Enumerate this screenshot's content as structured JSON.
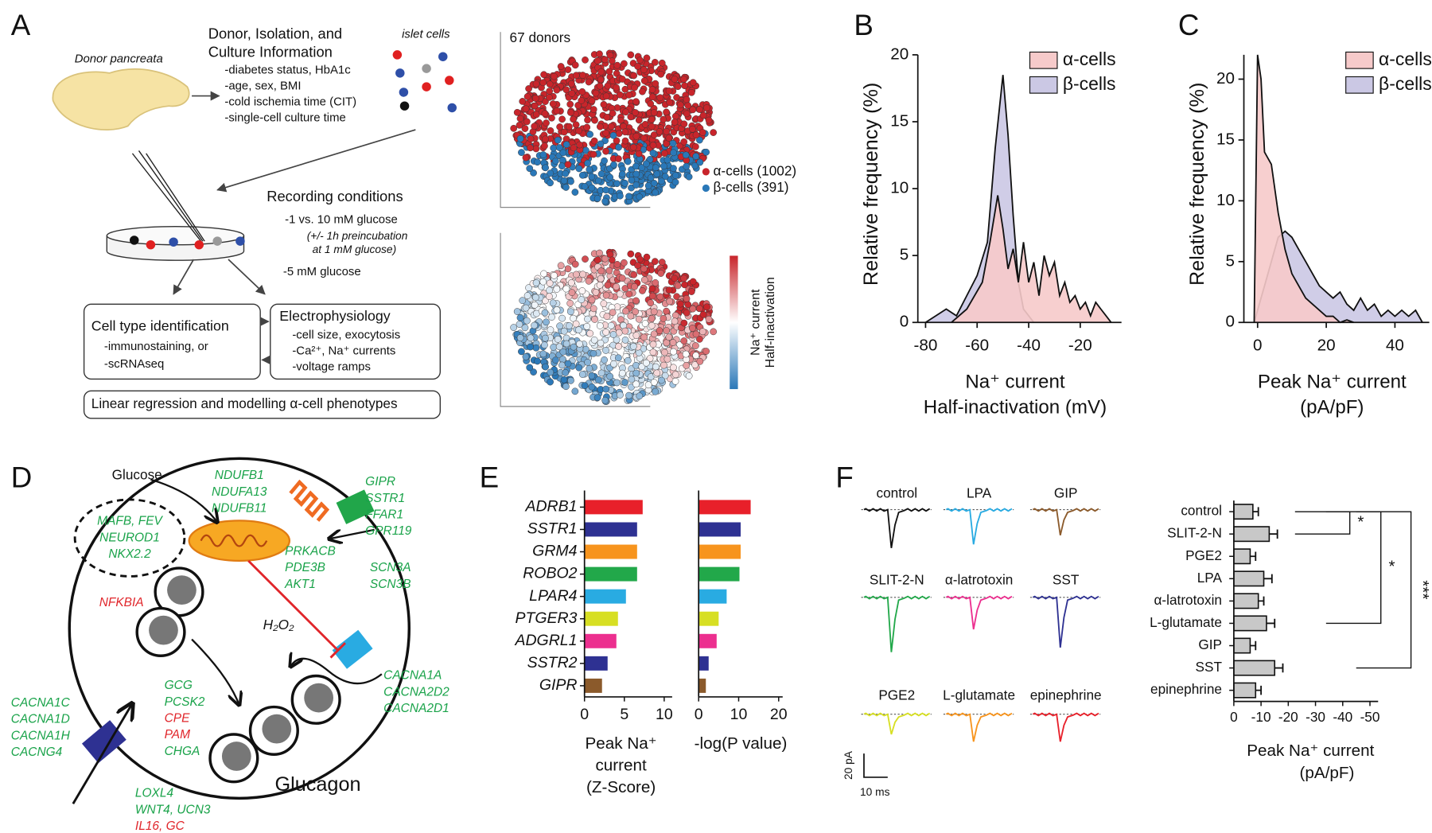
{
  "panel_labels": [
    "A",
    "B",
    "C",
    "D",
    "E",
    "F"
  ],
  "panel_a": {
    "pancreas_label": "Donor pancreata",
    "donor_info_title": [
      "Donor, Isolation, and",
      "Culture Information"
    ],
    "donor_info_items": [
      "-diabetes status, HbA1c",
      "-age, sex, BMI",
      "-cold ischemia time (CIT)",
      "-single-cell culture time"
    ],
    "islet_label": "islet cells",
    "recording_title": "Recording conditions",
    "recording_items": [
      "-1 vs. 10 mM glucose",
      "(+/- 1h preincubation",
      "at 1 mM glucose)",
      "-5 mM glucose"
    ],
    "cell_type_box": {
      "title": "Cell type identification",
      "items": [
        "-immunostaining, or",
        "-scRNAseq"
      ]
    },
    "ephys_box": {
      "title": "Electrophysiology",
      "items": [
        "-cell size, exocytosis",
        "-Ca²⁺, Na⁺ currents",
        "-voltage ramps"
      ]
    },
    "bottom_box": "Linear regression and modelling α-cell phenotypes",
    "umap_top": {
      "title": "67 donors",
      "legend": [
        {
          "name": "α-cells (1002)",
          "color": "#c8252b"
        },
        {
          "name": "β-cells (391)",
          "color": "#2a78b8"
        }
      ]
    },
    "umap_bottom": {
      "colorbar_label": [
        "Na⁺ current",
        "Half-inactivation"
      ]
    }
  },
  "chart_data": [
    {
      "type": "line",
      "ylabel": "Relative frequency (%)",
      "xlabel": [
        "Na⁺ current",
        "Half-inactivation (mV)"
      ],
      "xlim": [
        -83,
        -4
      ],
      "xticks": [
        -80,
        -60,
        -40,
        -20
      ],
      "ylim": [
        0,
        20
      ],
      "yticks": [
        0,
        5,
        10,
        15,
        20
      ],
      "fill_area": true,
      "series": [
        {
          "name": "α-cells",
          "color": "#f6caca",
          "x": [
            -70,
            -64,
            -58,
            -55,
            -52,
            -50,
            -48,
            -46,
            -44,
            -42,
            -40,
            -38,
            -36,
            -34,
            -32,
            -30,
            -28,
            -26,
            -24,
            -22,
            -20,
            -18,
            -16,
            -14,
            -12,
            -10,
            -8
          ],
          "values": [
            0,
            1,
            3,
            6,
            9.5,
            7,
            4,
            5.5,
            3,
            6,
            3,
            4.5,
            2,
            5,
            3.5,
            4.5,
            2,
            3,
            1.5,
            2,
            1,
            1.5,
            0.5,
            1.5,
            1,
            0.5,
            0
          ]
        },
        {
          "name": "β-cells",
          "color": "#cbc8e4",
          "x": [
            -80,
            -76,
            -72,
            -68,
            -64,
            -60,
            -56,
            -53,
            -50,
            -48,
            -46,
            -44,
            -42,
            -40,
            -38
          ],
          "values": [
            0,
            0.5,
            1,
            0.5,
            2,
            3.5,
            6,
            13,
            18.5,
            14,
            8,
            3,
            1,
            0.5,
            0
          ]
        }
      ]
    },
    {
      "type": "line",
      "ylabel": "Relative frequency (%)",
      "xlabel": [
        "Peak Na⁺ current",
        "(pA/pF)"
      ],
      "xlim": [
        -4,
        50
      ],
      "xticks": [
        0,
        20,
        40
      ],
      "ylim": [
        0,
        22
      ],
      "yticks": [
        0,
        5,
        10,
        15,
        20
      ],
      "fill_area": true,
      "series": [
        {
          "name": "α-cells",
          "color": "#f6caca",
          "x": [
            -1,
            0,
            1,
            2,
            4,
            6,
            8,
            10,
            12,
            14,
            16,
            18,
            20,
            22,
            24,
            26,
            28
          ],
          "values": [
            0,
            22,
            20,
            14,
            13,
            9,
            6,
            4,
            3,
            2,
            1.5,
            1,
            0.5,
            0.5,
            0,
            0.2,
            0
          ]
        },
        {
          "name": "β-cells",
          "color": "#cbc8e4",
          "x": [
            -1,
            0,
            2,
            4,
            6,
            8,
            10,
            12,
            14,
            16,
            18,
            20,
            22,
            24,
            26,
            28,
            30,
            32,
            34,
            36,
            38,
            40,
            42,
            44,
            46,
            48
          ],
          "values": [
            0,
            1,
            3,
            5,
            7,
            7.5,
            7,
            6,
            5,
            4,
            3,
            2.5,
            2,
            2.5,
            1.5,
            1,
            2,
            1,
            1.5,
            0.5,
            1,
            0.5,
            1,
            0.5,
            1,
            0
          ]
        }
      ]
    },
    {
      "type": "bar",
      "orientation": "horizontal",
      "categories": [
        "ADRB1",
        "SSTR1",
        "GRM4",
        "ROBO2",
        "LPAR4",
        "PTGER3",
        "ADGRL1",
        "SSTR2",
        "GIPR"
      ],
      "values": [
        7.3,
        6.6,
        6.6,
        6.6,
        5.2,
        4.2,
        4.0,
        2.9,
        2.2
      ],
      "colors": [
        "#e8202a",
        "#2e3192",
        "#f7941d",
        "#22a84a",
        "#29abe2",
        "#d7df23",
        "#ec2f8f",
        "#2e3192",
        "#8b5a2b"
      ],
      "xlim": [
        0,
        11
      ],
      "xticks": [
        0,
        5,
        10
      ],
      "xlabel": [
        "Peak Na⁺",
        "current",
        "(Z-Score)"
      ]
    },
    {
      "type": "bar",
      "orientation": "horizontal",
      "values": [
        13,
        10.5,
        10.5,
        10.2,
        7,
        5,
        4.5,
        2.5,
        1.8
      ],
      "colors": [
        "#e8202a",
        "#2e3192",
        "#f7941d",
        "#22a84a",
        "#29abe2",
        "#d7df23",
        "#ec2f8f",
        "#2e3192",
        "#8b5a2b"
      ],
      "xlim": [
        0,
        21
      ],
      "xticks": [
        0,
        10,
        20
      ],
      "xlabel": "-log(P value)"
    },
    {
      "type": "bar",
      "orientation": "horizontal",
      "categories": [
        "control",
        "SLIT-2-N",
        "PGE2",
        "LPA",
        "α-latrotoxin",
        "L-glutamate",
        "GIP",
        "SST",
        "epinephrine"
      ],
      "values": [
        -7,
        -13,
        -6,
        -11,
        -9,
        -12,
        -6,
        -15,
        -8
      ],
      "errors": [
        2,
        3,
        2,
        3,
        2,
        3,
        2,
        3,
        2
      ],
      "color": "#c8c8c8",
      "xlim": [
        0,
        -53
      ],
      "xticks": [
        0,
        -10,
        -20,
        -30,
        -40,
        -50
      ],
      "xlabel": [
        "Peak Na⁺ current",
        "(pA/pF)"
      ],
      "annotations": [
        "*",
        "*",
        "***"
      ]
    }
  ],
  "panel_d": {
    "glucose": "Glucose",
    "h2o2": "H₂O₂",
    "glucagon": "Glucagon",
    "genes": [
      {
        "text": "NDUFB1",
        "color": "#1aa34a"
      },
      {
        "text": "NDUFA13",
        "color": "#1aa34a"
      },
      {
        "text": "NDUFB11",
        "color": "#1aa34a"
      },
      {
        "text": "GIPR",
        "color": "#1aa34a"
      },
      {
        "text": "SSTR1",
        "color": "#1aa34a"
      },
      {
        "text": "FFAR1",
        "color": "#1aa34a"
      },
      {
        "text": "GPR119",
        "color": "#1aa34a"
      },
      {
        "text": "PRKACB",
        "color": "#1aa34a"
      },
      {
        "text": "PDE3B",
        "color": "#1aa34a"
      },
      {
        "text": "AKT1",
        "color": "#1aa34a"
      },
      {
        "text": "SCN3A",
        "color": "#1aa34a"
      },
      {
        "text": "SCN3B",
        "color": "#1aa34a"
      },
      {
        "text": "MAFB, FEV",
        "color": "#1aa34a"
      },
      {
        "text": "NEUROD1",
        "color": "#1aa34a"
      },
      {
        "text": "NKX2.2",
        "color": "#1aa34a"
      },
      {
        "text": "NFKBIA",
        "color": "#e0262b"
      },
      {
        "text": "CACNA1A",
        "color": "#1aa34a"
      },
      {
        "text": "CACNA2D2",
        "color": "#1aa34a"
      },
      {
        "text": "CACNA2D1",
        "color": "#1aa34a"
      },
      {
        "text": "CACNA1C",
        "color": "#1aa34a"
      },
      {
        "text": "CACNA1D",
        "color": "#1aa34a"
      },
      {
        "text": "CACNA1H",
        "color": "#1aa34a"
      },
      {
        "text": "CACNG4",
        "color": "#1aa34a"
      },
      {
        "text": "GCG",
        "color": "#1aa34a"
      },
      {
        "text": "PCSK2",
        "color": "#1aa34a"
      },
      {
        "text": "CPE",
        "color": "#e0262b"
      },
      {
        "text": "PAM",
        "color": "#e0262b"
      },
      {
        "text": "CHGA",
        "color": "#1aa34a"
      },
      {
        "text": "LOXL4",
        "color": "#1aa34a"
      },
      {
        "text": "WNT4, UCN3",
        "color": "#1aa34a"
      },
      {
        "text": "IL16, GC",
        "color": "#e0262b"
      }
    ]
  },
  "panel_f_traces": {
    "traces": [
      {
        "name": "control",
        "color": "#111111"
      },
      {
        "name": "LPA",
        "color": "#29abe2"
      },
      {
        "name": "GIP",
        "color": "#8b5a2b"
      },
      {
        "name": "SLIT-2-N",
        "color": "#22a84a"
      },
      {
        "name": "α-latrotoxin",
        "color": "#ec2f8f"
      },
      {
        "name": "SST",
        "color": "#2e3192"
      },
      {
        "name": "PGE2",
        "color": "#d7df23"
      },
      {
        "name": "L-glutamate",
        "color": "#f7941d"
      },
      {
        "name": "epinephrine",
        "color": "#e8202a"
      }
    ],
    "scale_bar": [
      "20 pA",
      "10 ms"
    ]
  }
}
